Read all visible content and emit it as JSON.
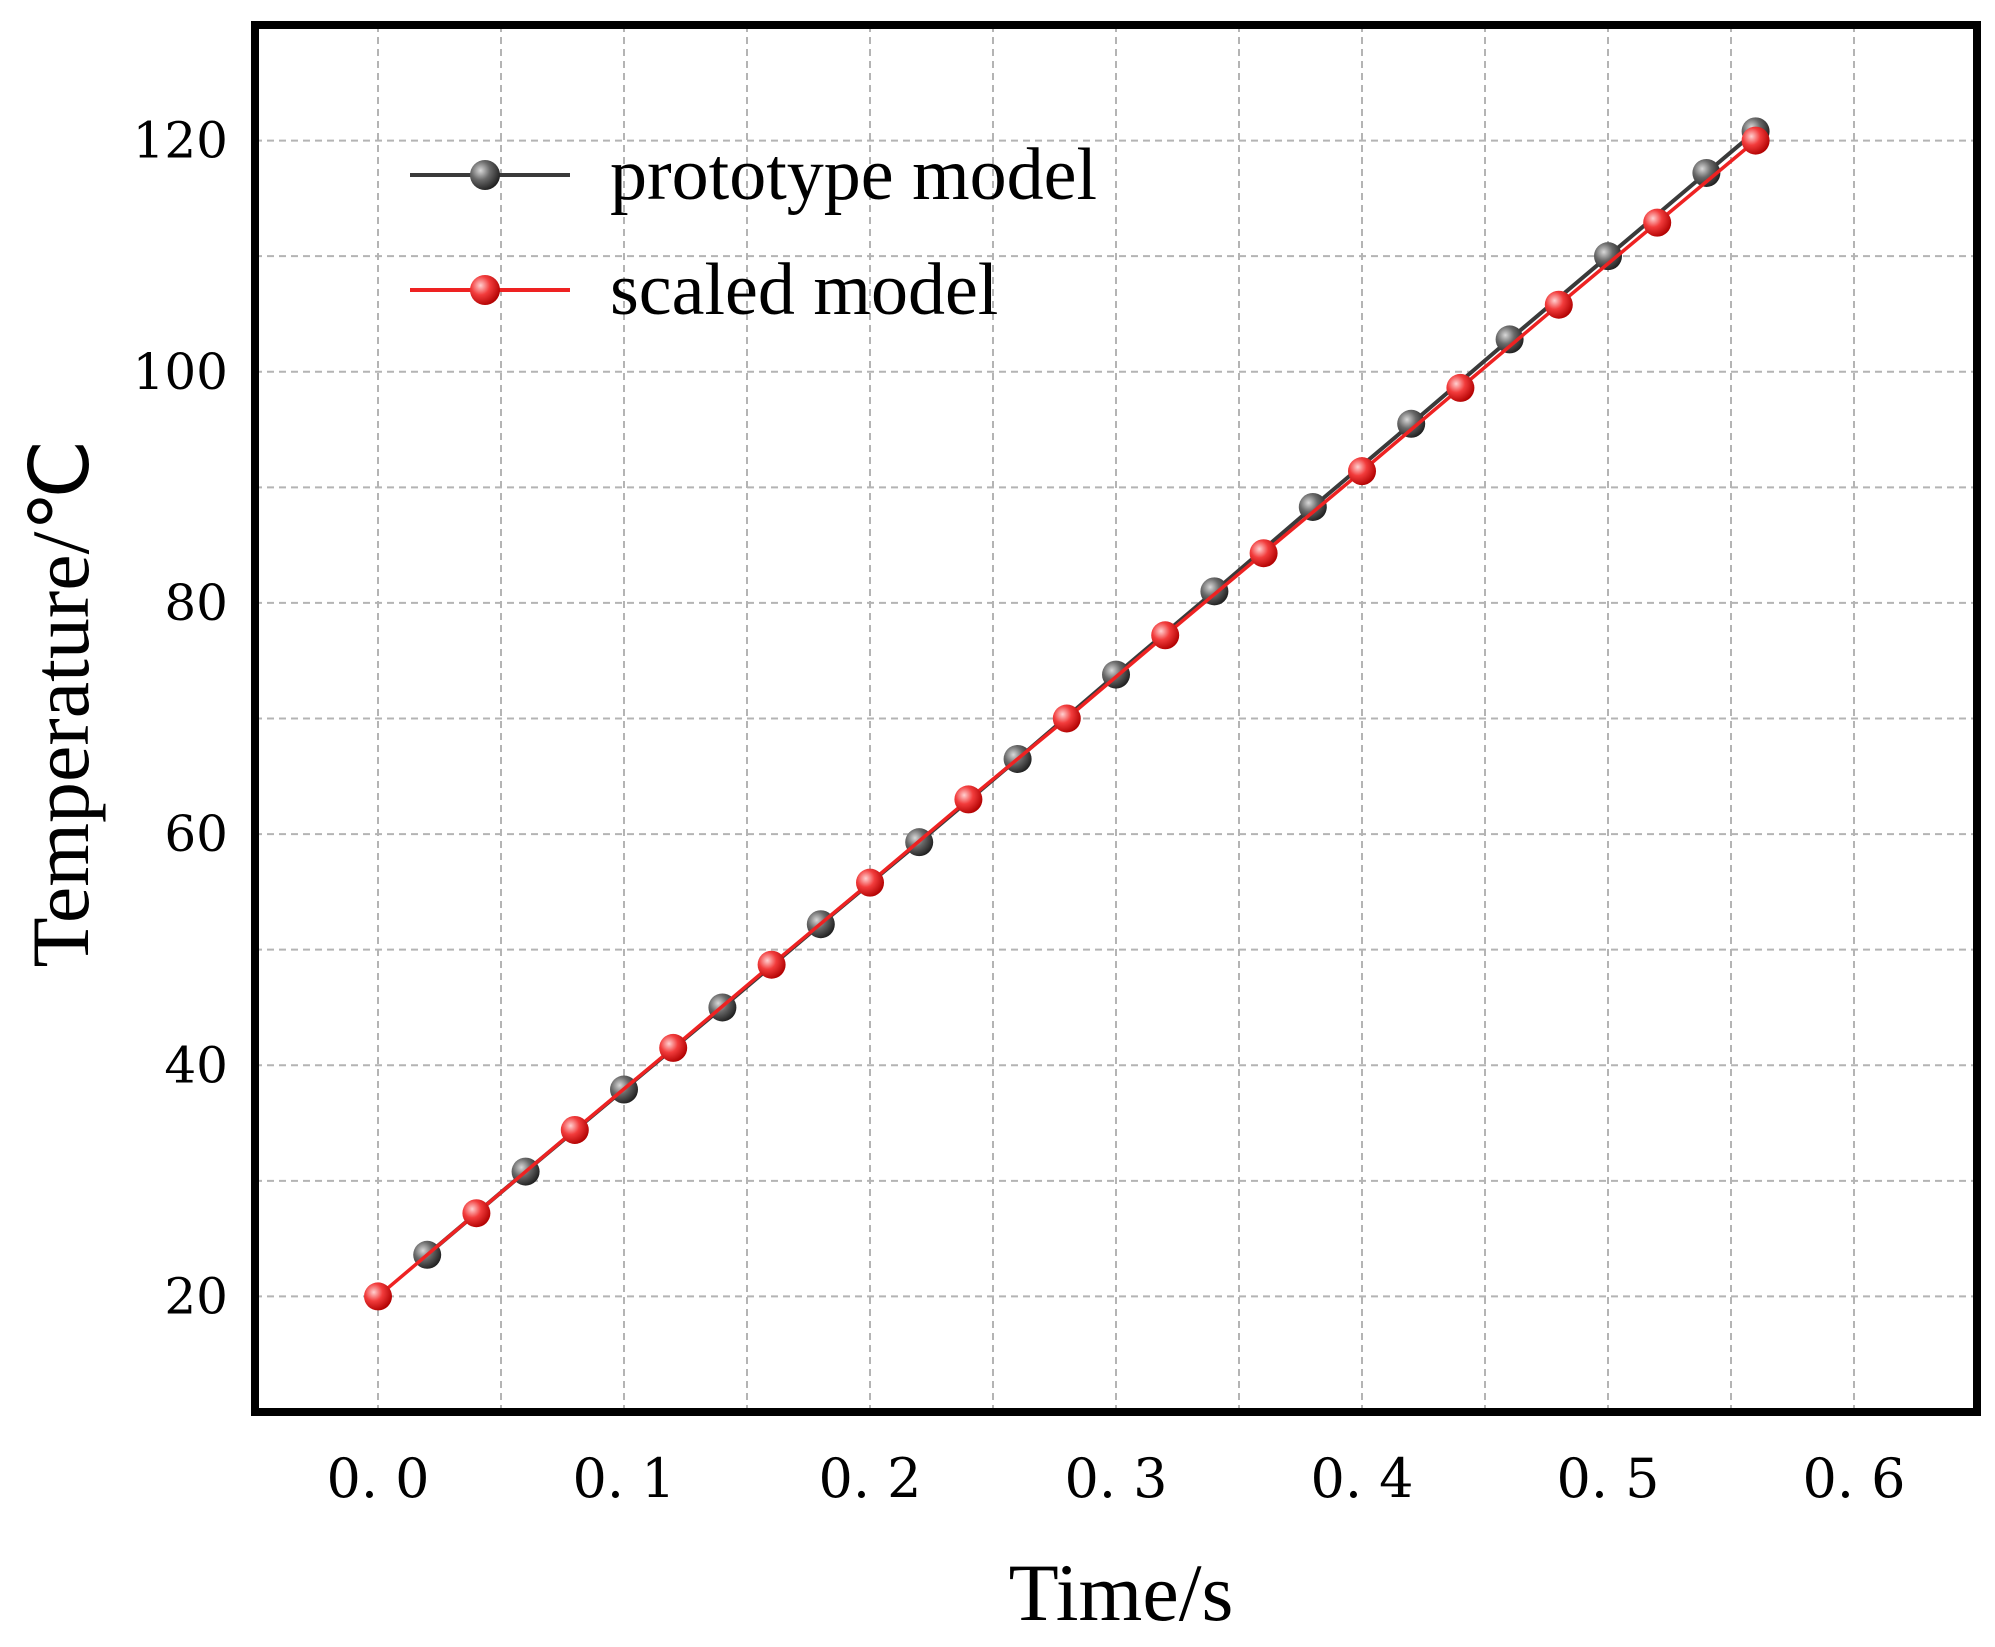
{
  "chart_data": {
    "type": "line",
    "xlabel": "Time/s",
    "ylabel": "Temperature/℃",
    "xlim": [
      -0.05,
      0.65
    ],
    "ylim": [
      10,
      130
    ],
    "xticks": [
      0.0,
      0.1,
      0.2,
      0.3,
      0.4,
      0.5,
      0.6
    ],
    "xtick_labels": [
      "0. 0",
      "0. 1",
      "0. 2",
      "0. 3",
      "0. 4",
      "0. 5",
      "0. 6"
    ],
    "yticks": [
      20,
      40,
      60,
      80,
      100,
      120
    ],
    "ytick_labels": [
      "20",
      "40",
      "60",
      "80",
      "100",
      "120"
    ],
    "minor_xticks": [
      0.05,
      0.15,
      0.25,
      0.35,
      0.45,
      0.55
    ],
    "minor_yticks": [
      30,
      50,
      70,
      90,
      110
    ],
    "grid": true,
    "legend_position": "top-left",
    "series": [
      {
        "name": "prototype model",
        "color": "#3a3a3a",
        "x": [
          0.02,
          0.06,
          0.1,
          0.14,
          0.18,
          0.22,
          0.26,
          0.3,
          0.34,
          0.38,
          0.42,
          0.46,
          0.5,
          0.54,
          0.56
        ],
        "y": [
          23.6,
          30.8,
          37.9,
          45.0,
          52.2,
          59.3,
          66.5,
          73.8,
          81.0,
          88.3,
          95.5,
          102.8,
          110.0,
          117.2,
          120.8
        ]
      },
      {
        "name": "scaled model",
        "color": "#ee2222",
        "x": [
          0.0,
          0.04,
          0.08,
          0.12,
          0.16,
          0.2,
          0.24,
          0.28,
          0.32,
          0.36,
          0.4,
          0.44,
          0.48,
          0.52,
          0.56
        ],
        "y": [
          20.0,
          27.2,
          34.4,
          41.5,
          48.7,
          55.8,
          63.0,
          70.0,
          77.2,
          84.3,
          91.4,
          98.6,
          105.8,
          112.9,
          120.0
        ]
      }
    ]
  }
}
